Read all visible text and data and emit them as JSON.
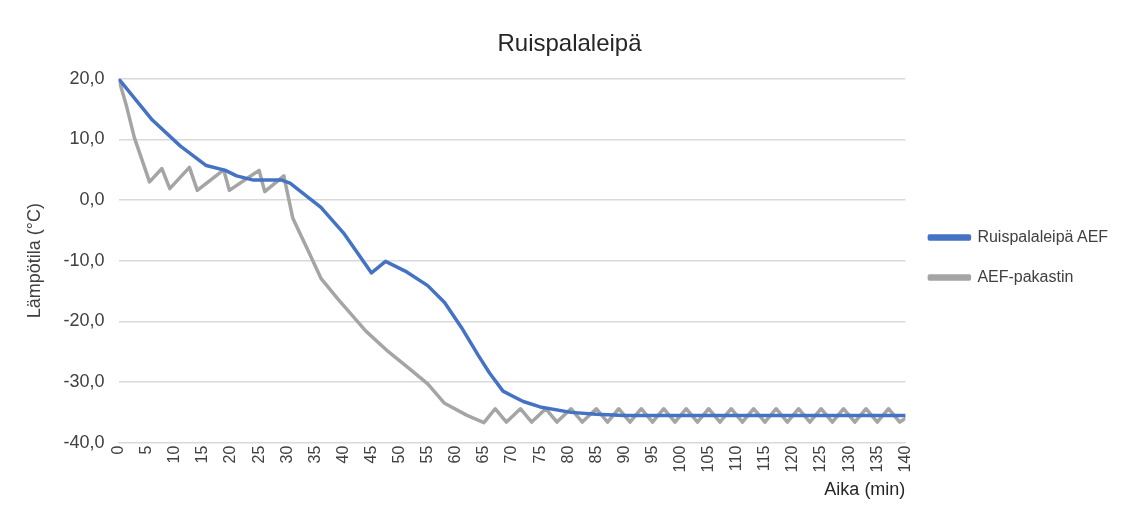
{
  "chart_data": {
    "type": "line",
    "title": "Ruispalaleipä",
    "xlabel": "Aika (min)",
    "ylabel": "Lämpötila (°C)",
    "xlim": [
      0,
      140
    ],
    "xticks": [
      0,
      5,
      10,
      15,
      20,
      25,
      30,
      35,
      40,
      45,
      50,
      55,
      60,
      65,
      70,
      75,
      80,
      85,
      90,
      95,
      100,
      105,
      110,
      115,
      120,
      125,
      130,
      135,
      140
    ],
    "ylim": [
      -40,
      20
    ],
    "yticks": [
      {
        "value": -40,
        "label": "-40,0"
      },
      {
        "value": -30,
        "label": "-30,0"
      },
      {
        "value": -20,
        "label": "-20,0"
      },
      {
        "value": -10,
        "label": "-10,0"
      },
      {
        "value": 0,
        "label": "0,0"
      },
      {
        "value": 10,
        "label": "10,0"
      },
      {
        "value": 20,
        "label": "20,0"
      }
    ],
    "grid": "y",
    "legend": "right",
    "marker": "none",
    "line_style": "solid",
    "series": [
      {
        "name": "Ruispalaleipä AEF",
        "color": "#4472c4",
        "x": [
          0,
          6,
          11,
          15.6,
          19,
          21,
          24,
          29,
          30.5,
          36,
          40,
          45,
          47.5,
          51,
          55,
          58,
          61,
          64,
          66,
          68.4,
          72,
          75,
          80.5,
          85,
          90,
          100,
          110,
          120,
          130,
          140
        ],
        "values": [
          20,
          13.2,
          8.9,
          5.7,
          4.9,
          4.0,
          3.3,
          3.3,
          2.8,
          -1.2,
          -5.4,
          -12,
          -10.1,
          -11.7,
          -14.1,
          -16.9,
          -21,
          -25.6,
          -28.5,
          -31.5,
          -33.2,
          -34.1,
          -35,
          -35.3,
          -35.5,
          -35.5,
          -35.5,
          -35.5,
          -35.5,
          -35.5
        ]
      },
      {
        "name": "AEF-pakastin",
        "color": "#a5a5a5",
        "x": [
          0,
          1.4,
          2.8,
          5.5,
          7.7,
          9.1,
          12.6,
          14,
          18.7,
          19.7,
          25,
          26,
          29.4,
          31,
          34,
          36,
          39,
          44,
          48,
          52,
          55,
          58,
          62,
          65,
          67,
          69,
          71.5,
          73.5,
          76,
          78,
          80.5,
          82.5,
          85,
          87,
          89,
          91,
          93,
          95,
          97,
          99,
          101,
          103,
          105,
          107,
          109,
          111,
          113,
          115,
          117,
          119,
          121,
          123,
          125,
          127,
          129,
          131,
          133,
          135,
          137,
          139,
          140
        ],
        "values": [
          20,
          15.5,
          10.3,
          3.0,
          5.2,
          1.9,
          5.4,
          1.6,
          5.0,
          1.6,
          4.9,
          1.4,
          4.0,
          -3,
          -8.9,
          -12.9,
          -16.3,
          -21.6,
          -25,
          -28,
          -30.3,
          -33.5,
          -35.5,
          -36.7,
          -34.4,
          -36.6,
          -34.4,
          -36.6,
          -34.4,
          -36.6,
          -34.4,
          -36.6,
          -34.4,
          -36.6,
          -34.4,
          -36.6,
          -34.4,
          -36.6,
          -34.4,
          -36.6,
          -34.4,
          -36.6,
          -34.4,
          -36.6,
          -34.4,
          -36.6,
          -34.4,
          -36.6,
          -34.4,
          -36.6,
          -34.4,
          -36.6,
          -34.4,
          -36.6,
          -34.4,
          -36.6,
          -34.4,
          -36.6,
          -34.4,
          -36.6,
          -36
        ]
      }
    ]
  }
}
